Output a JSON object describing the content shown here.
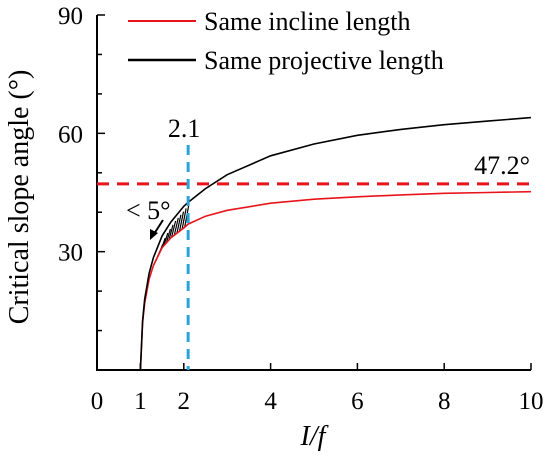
{
  "chart_data": {
    "type": "line",
    "xlabel": "I/f",
    "ylabel": "Critical slope angle (°)",
    "xlim": [
      0,
      10
    ],
    "ylim": [
      0,
      90
    ],
    "xticks": [
      0,
      1,
      2,
      4,
      6,
      8,
      10
    ],
    "yticks": [
      30,
      60,
      90
    ],
    "grid": false,
    "legend_position": "top-left",
    "series": [
      {
        "name": "Same incline length",
        "color": "#e8141b",
        "x": [
          1.0,
          1.05,
          1.1,
          1.2,
          1.3,
          1.5,
          1.7,
          2.0,
          2.1,
          2.5,
          3.0,
          4.0,
          5.0,
          6.0,
          7.0,
          8.0,
          9.0,
          10.0
        ],
        "y": [
          0.0,
          12.0,
          17.0,
          23.0,
          26.5,
          31.0,
          33.5,
          36.0,
          37.0,
          39.0,
          40.5,
          42.3,
          43.3,
          43.9,
          44.4,
          44.8,
          45.0,
          45.2
        ]
      },
      {
        "name": "Same projective length",
        "color": "#000000",
        "x": [
          1.0,
          1.05,
          1.1,
          1.2,
          1.3,
          1.5,
          1.7,
          2.0,
          2.1,
          2.5,
          3.0,
          4.0,
          5.0,
          6.0,
          7.0,
          8.0,
          9.0,
          10.0
        ],
        "y": [
          0.0,
          12.5,
          18.0,
          24.5,
          28.5,
          34.0,
          37.5,
          41.5,
          42.5,
          46.0,
          49.5,
          54.3,
          57.3,
          59.5,
          61.0,
          62.2,
          63.1,
          64.0
        ]
      }
    ],
    "reference_lines": [
      {
        "orientation": "horizontal",
        "value": 47.2,
        "label": "47.2°",
        "color": "#e8141b",
        "style": "dashed"
      },
      {
        "orientation": "vertical",
        "value": 2.1,
        "label": "2.1",
        "color": "#2aa3d9",
        "style": "dashed"
      }
    ],
    "annotations": [
      {
        "text": "< 5°",
        "description": "hatched region between curves from I/f = 1.3 to 2.0"
      }
    ]
  }
}
